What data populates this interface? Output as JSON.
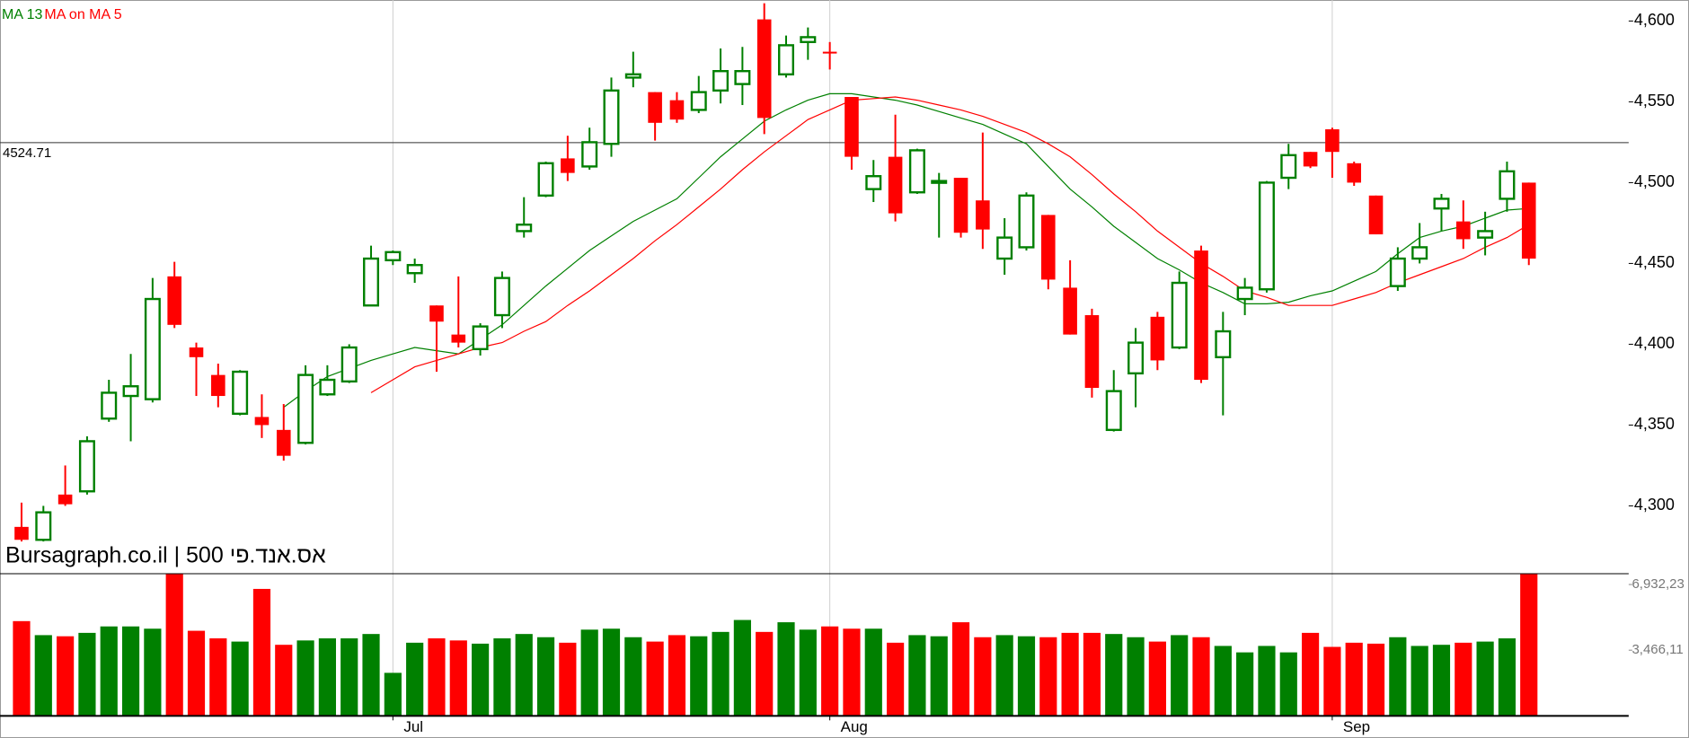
{
  "chart_data": [
    {
      "type": "candlestick",
      "title": "Bursagraph.co.il | אס.אנד.פי 500",
      "up_color": "#008000",
      "down_color": "#ff0000",
      "open": [
        4287,
        4279,
        4307,
        4309,
        4354,
        4368,
        4366,
        4442,
        4398,
        4381,
        4357,
        4355,
        4347,
        4339,
        4369,
        4377,
        4424,
        4452,
        4444,
        4424,
        4406,
        4397,
        4418,
        4470,
        4492,
        4515,
        4510,
        4524,
        4565,
        4556,
        4551,
        4545,
        4557,
        4561,
        4601,
        4567,
        4587,
        4581,
        4553,
        4496,
        4516,
        4494,
        4500,
        4503,
        4489,
        4453,
        4460,
        4480,
        4435,
        4418,
        4347,
        4382,
        4417,
        4398,
        4458,
        4392,
        4428,
        4434,
        4503,
        4519,
        4533,
        4512,
        4492,
        4436,
        4453,
        4484,
        4476,
        4466,
        4490,
        4500
      ],
      "high": [
        4302,
        4300,
        4325,
        4343,
        4378,
        4394,
        4441,
        4451,
        4401,
        4388,
        4384,
        4369,
        4363,
        4387,
        4387,
        4400,
        4461,
        4458,
        4453,
        4424,
        4442,
        4413,
        4445,
        4491,
        4513,
        4529,
        4534,
        4565,
        4581,
        4556,
        4556,
        4566,
        4583,
        4584,
        4611,
        4591,
        4596,
        4587,
        4553,
        4514,
        4542,
        4521,
        4506,
        4503,
        4531,
        4478,
        4494,
        4480,
        4452,
        4422,
        4384,
        4410,
        4420,
        4445,
        4461,
        4420,
        4441,
        4501,
        4524,
        4519,
        4534,
        4513,
        4492,
        4460,
        4475,
        4493,
        4489,
        4482,
        4513,
        4500
      ],
      "low": [
        4276,
        4277,
        4300,
        4307,
        4352,
        4340,
        4364,
        4410,
        4368,
        4361,
        4356,
        4342,
        4328,
        4338,
        4368,
        4376,
        4424,
        4449,
        4438,
        4383,
        4398,
        4393,
        4410,
        4466,
        4491,
        4501,
        4508,
        4516,
        4559,
        4526,
        4537,
        4543,
        4549,
        4548,
        4530,
        4565,
        4576,
        4570,
        4508,
        4488,
        4476,
        4493,
        4466,
        4466,
        4459,
        4443,
        4458,
        4434,
        4406,
        4367,
        4346,
        4361,
        4384,
        4397,
        4376,
        4356,
        4418,
        4432,
        4496,
        4509,
        4503,
        4498,
        4468,
        4433,
        4450,
        4470,
        4459,
        4455,
        4482,
        4449
      ],
      "close": [
        4279,
        4296,
        4301,
        4340,
        4370,
        4374,
        4428,
        4412,
        4392,
        4368,
        4383,
        4350,
        4331,
        4381,
        4378,
        4398,
        4453,
        4457,
        4449,
        4414,
        4401,
        4411,
        4441,
        4474,
        4512,
        4506,
        4525,
        4557,
        4567,
        4537,
        4539,
        4556,
        4569,
        4569,
        4540,
        4585,
        4590,
        4580,
        4516,
        4504,
        4481,
        4520,
        4501,
        4469,
        4471,
        4466,
        4492,
        4440,
        4406,
        4373,
        4371,
        4401,
        4390,
        4438,
        4378,
        4408,
        4435,
        4500,
        4517,
        4510,
        4519,
        4500,
        4468,
        4453,
        4460,
        4490,
        4465,
        4470,
        4507,
        4453
      ],
      "series": [
        {
          "name": "MA 13",
          "color": "#008000",
          "values": [
            null,
            null,
            null,
            null,
            null,
            null,
            null,
            null,
            null,
            null,
            null,
            null,
            4361,
            4371,
            4380,
            4385,
            4390,
            4394,
            4398,
            4396,
            4394,
            4403,
            4412,
            4424,
            4436,
            4447,
            4458,
            4467,
            4476,
            4483,
            4490,
            4503,
            4516,
            4527,
            4538,
            4545,
            4551,
            4555,
            4555,
            4553,
            4551,
            4548,
            4544,
            4540,
            4536,
            4530,
            4524,
            4510,
            4496,
            4485,
            4473,
            4463,
            4453,
            4446,
            4438,
            4432,
            4425,
            4425,
            4426,
            4430,
            4433,
            4439,
            4445,
            4456,
            4466,
            4470,
            4473,
            4478,
            4483,
            4484
          ]
        },
        {
          "name": "MA on MA 5",
          "color": "#ff0000",
          "values": [
            null,
            null,
            null,
            null,
            null,
            null,
            null,
            null,
            null,
            null,
            null,
            null,
            null,
            null,
            null,
            null,
            4370,
            4378,
            4386,
            4390,
            4394,
            4398,
            4401,
            4408,
            4414,
            4424,
            4433,
            4443,
            4453,
            4464,
            4474,
            4485,
            4496,
            4508,
            4519,
            4529,
            4539,
            4545,
            4551,
            4552,
            4553,
            4551,
            4548,
            4545,
            4541,
            4536,
            4531,
            4524,
            4516,
            4505,
            4493,
            4482,
            4470,
            4460,
            4450,
            4442,
            4433,
            4429,
            4424,
            4424,
            4424,
            4428,
            4432,
            4438,
            4443,
            4448,
            4453,
            4460,
            4466,
            4474
          ]
        }
      ],
      "reference_line": 4524.71,
      "ylim": [
        4258,
        4613
      ],
      "yticks": [
        {
          "value": 4300,
          "label": "4,300"
        },
        {
          "value": 4350,
          "label": "4,350"
        },
        {
          "value": 4400,
          "label": "4,400"
        },
        {
          "value": 4450,
          "label": "4,450"
        },
        {
          "value": 4500,
          "label": "4,500"
        },
        {
          "value": 4550,
          "label": "4,550"
        },
        {
          "value": 4600,
          "label": "4,600"
        }
      ]
    },
    {
      "type": "bar",
      "values": [
        500000,
        426000,
        420000,
        438000,
        472000,
        472000,
        460000,
        750000,
        449000,
        409000,
        392000,
        670000,
        375000,
        398000,
        409000,
        409000,
        432000,
        227000,
        386000,
        409000,
        398000,
        381000,
        409000,
        432000,
        415000,
        386000,
        455000,
        460000,
        415000,
        392000,
        426000,
        420000,
        443000,
        506000,
        443000,
        494000,
        455000,
        472000,
        460000,
        460000,
        386000,
        426000,
        420000,
        494000,
        415000,
        426000,
        420000,
        415000,
        438000,
        438000,
        432000,
        415000,
        392000,
        426000,
        415000,
        369000,
        335000,
        369000,
        335000,
        438000,
        364000,
        386000,
        381000,
        415000,
        369000,
        375000,
        386000,
        392000,
        409000,
        750000
      ],
      "ylim": [
        0,
        750000
      ],
      "yticks": [
        {
          "value": 346611,
          "label": "3,466,11"
        },
        {
          "value": 693223,
          "label": "6,932,23"
        }
      ],
      "xticks": [
        {
          "value": 17,
          "label": "Jul"
        },
        {
          "value": 37,
          "label": "Aug"
        },
        {
          "value": 60,
          "label": "Sep"
        }
      ]
    }
  ]
}
